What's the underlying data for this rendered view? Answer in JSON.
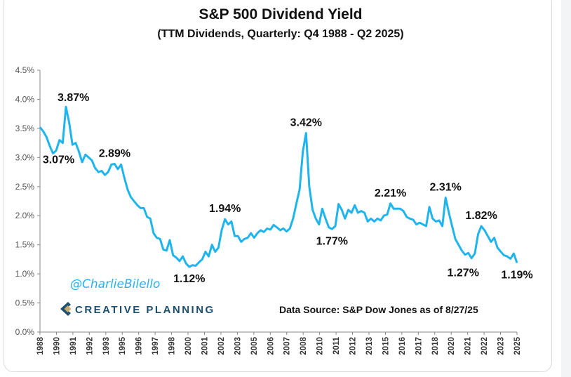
{
  "chart_data": {
    "type": "line",
    "title": "S&P 500 Dividend Yield",
    "subtitle": "(TTM Dividends, Quarterly: Q4 1988 - Q2 2025)",
    "xlabel": "",
    "ylabel": "",
    "ylim": [
      0,
      4.5
    ],
    "y_ticks": [
      "0.0%",
      "0.5%",
      "1.0%",
      "1.5%",
      "2.0%",
      "2.5%",
      "3.0%",
      "3.5%",
      "4.0%",
      "4.5%"
    ],
    "x_tick_labels": [
      "1988",
      "1990",
      "1991",
      "1992",
      "1993",
      "1995",
      "1996",
      "1997",
      "1998",
      "2000",
      "2001",
      "2002",
      "2003",
      "2005",
      "2006",
      "2007",
      "2008",
      "2010",
      "2011",
      "2012",
      "2013",
      "2015",
      "2016",
      "2017",
      "2018",
      "2020",
      "2021",
      "2022",
      "2023",
      "2025"
    ],
    "series": [
      {
        "name": "Dividend Yield (%)",
        "color": "#1fb5ec",
        "x": [
          1988.75,
          1989,
          1989.25,
          1989.5,
          1989.75,
          1990,
          1990.25,
          1990.5,
          1990.75,
          1991,
          1991.25,
          1991.5,
          1991.75,
          1992,
          1992.25,
          1992.5,
          1992.75,
          1993,
          1993.25,
          1993.5,
          1993.75,
          1994,
          1994.25,
          1994.5,
          1994.75,
          1995,
          1995.25,
          1995.5,
          1995.75,
          1996,
          1996.25,
          1996.5,
          1996.75,
          1997,
          1997.25,
          1997.5,
          1997.75,
          1998,
          1998.25,
          1998.5,
          1998.75,
          1999,
          1999.25,
          1999.5,
          1999.75,
          2000,
          2000.25,
          2000.5,
          2000.75,
          2001,
          2001.25,
          2001.5,
          2001.75,
          2002,
          2002.25,
          2002.5,
          2002.75,
          2003,
          2003.25,
          2003.5,
          2003.75,
          2004,
          2004.25,
          2004.5,
          2004.75,
          2005,
          2005.25,
          2005.5,
          2005.75,
          2006,
          2006.25,
          2006.5,
          2006.75,
          2007,
          2007.25,
          2007.5,
          2007.75,
          2008,
          2008.25,
          2008.5,
          2008.75,
          2009,
          2009.25,
          2009.5,
          2009.75,
          2010,
          2010.25,
          2010.5,
          2010.75,
          2011,
          2011.25,
          2011.5,
          2011.75,
          2012,
          2012.25,
          2012.5,
          2012.75,
          2013,
          2013.25,
          2013.5,
          2013.75,
          2014,
          2014.25,
          2014.5,
          2014.75,
          2015,
          2015.25,
          2015.5,
          2015.75,
          2016,
          2016.25,
          2016.5,
          2016.75,
          2017,
          2017.25,
          2017.5,
          2017.75,
          2018,
          2018.25,
          2018.5,
          2018.75,
          2019,
          2019.25,
          2019.5,
          2019.75,
          2020,
          2020.25,
          2020.5,
          2020.75,
          2021,
          2021.25,
          2021.5,
          2021.75,
          2022,
          2022.25,
          2022.5,
          2022.75,
          2023,
          2023.25,
          2023.5,
          2023.75,
          2024,
          2024.25,
          2024.5,
          2024.75,
          2025,
          2025.25,
          2025.5
        ],
        "values": [
          3.52,
          3.45,
          3.35,
          3.2,
          3.07,
          3.12,
          3.3,
          3.25,
          3.87,
          3.6,
          3.22,
          3.25,
          3.1,
          2.92,
          3.05,
          3.0,
          2.95,
          2.82,
          2.75,
          2.77,
          2.7,
          2.75,
          2.88,
          2.89,
          2.8,
          2.88,
          2.65,
          2.45,
          2.32,
          2.25,
          2.18,
          2.13,
          2.13,
          1.98,
          1.95,
          1.7,
          1.62,
          1.6,
          1.42,
          1.4,
          1.58,
          1.32,
          1.28,
          1.22,
          1.3,
          1.18,
          1.12,
          1.15,
          1.14,
          1.2,
          1.25,
          1.38,
          1.3,
          1.5,
          1.38,
          1.45,
          1.75,
          1.94,
          1.85,
          1.9,
          1.65,
          1.65,
          1.55,
          1.6,
          1.62,
          1.7,
          1.62,
          1.7,
          1.75,
          1.72,
          1.78,
          1.76,
          1.84,
          1.8,
          1.75,
          1.78,
          1.73,
          1.78,
          1.95,
          2.2,
          2.45,
          3.1,
          3.42,
          2.5,
          2.1,
          1.95,
          1.85,
          2.12,
          1.95,
          1.8,
          1.77,
          1.82,
          2.2,
          2.1,
          1.95,
          2.1,
          2.05,
          2.18,
          2.05,
          2.08,
          2.05,
          1.9,
          1.95,
          1.9,
          1.95,
          1.92,
          2.0,
          2.02,
          2.21,
          2.12,
          2.12,
          2.12,
          2.08,
          1.98,
          1.95,
          1.93,
          1.85,
          1.88,
          1.85,
          1.82,
          2.15,
          1.95,
          1.9,
          1.92,
          1.82,
          2.31,
          2.05,
          1.82,
          1.6,
          1.5,
          1.4,
          1.33,
          1.36,
          1.27,
          1.35,
          1.68,
          1.82,
          1.75,
          1.65,
          1.55,
          1.62,
          1.45,
          1.38,
          1.32,
          1.3,
          1.26,
          1.35,
          1.19
        ]
      }
    ],
    "annotations": [
      {
        "text": "3.87%",
        "x": 1990.75,
        "y": 3.87,
        "pos": "above-right"
      },
      {
        "text": "3.07%",
        "x": 1989.75,
        "y": 3.07,
        "pos": "below"
      },
      {
        "text": "2.89%",
        "x": 1994.5,
        "y": 2.89,
        "pos": "above"
      },
      {
        "text": "1.12%",
        "x": 2000.25,
        "y": 1.12,
        "pos": "below"
      },
      {
        "text": "1.94%",
        "x": 2003,
        "y": 1.94,
        "pos": "above"
      },
      {
        "text": "3.42%",
        "x": 2009.25,
        "y": 3.42,
        "pos": "above"
      },
      {
        "text": "1.77%",
        "x": 2011.25,
        "y": 1.77,
        "pos": "below"
      },
      {
        "text": "2.21%",
        "x": 2015.75,
        "y": 2.21,
        "pos": "above"
      },
      {
        "text": "2.31%",
        "x": 2020,
        "y": 2.31,
        "pos": "above"
      },
      {
        "text": "1.27%",
        "x": 2022,
        "y": 1.27,
        "pos": "below-left"
      },
      {
        "text": "1.82%",
        "x": 2022.75,
        "y": 1.82,
        "pos": "above"
      },
      {
        "text": "1.19%",
        "x": 2025.5,
        "y": 1.19,
        "pos": "below"
      }
    ],
    "grid": false
  },
  "handle": "@CharlieBilello",
  "brand": "CREATIVE PLANNING",
  "source": "Data Source: S&P Dow Jones as of 8/27/25"
}
